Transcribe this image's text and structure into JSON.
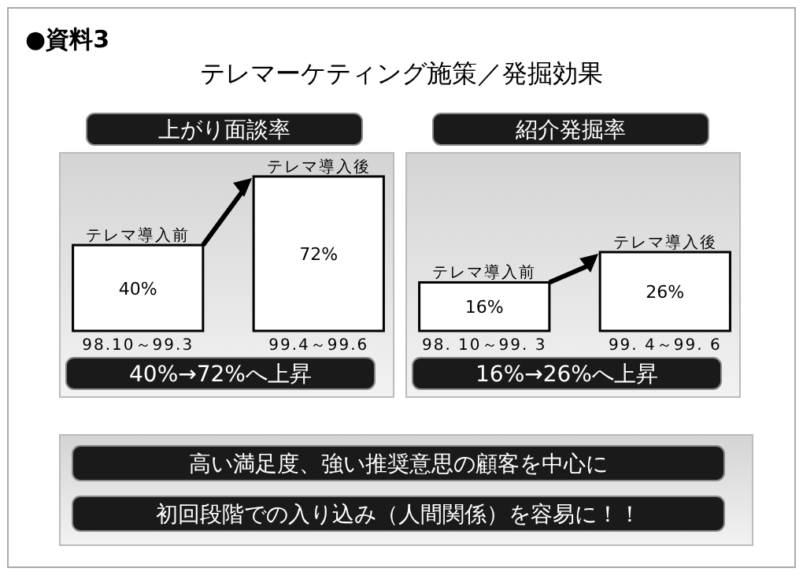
{
  "chart_data": [
    {
      "type": "other",
      "title": "テレマーケティング施策／発掘効果",
      "annotations": [
        "●資料3",
        "高い満足度、強い推奨意思の顧客を中心に",
        "初回段階での入り込み（人間関係）を容易に！！"
      ]
    },
    {
      "type": "bar",
      "title": "上がり面談率",
      "categories": [
        "98.10～99.3",
        "99.4～99.6"
      ],
      "values": [
        40,
        72
      ],
      "color": "#ffffff",
      "value_labels": [
        "40%",
        "72%"
      ],
      "annotations": [
        {
          "text": "テレマ導入前",
          "x": "98.10～99.3",
          "y": 40
        },
        {
          "text": "テレマ導入後",
          "x": "99.4～99.6",
          "y": 72
        },
        "40%→72%へ上昇"
      ]
    },
    {
      "type": "bar",
      "title": "紹介発掘率",
      "categories": [
        "98. 10～99. 3",
        "99. 4～99. 6"
      ],
      "values": [
        16,
        26
      ],
      "color": "#ffffff",
      "value_labels": [
        "16%",
        "26%"
      ],
      "annotations": [
        {
          "text": "テレマ導入前",
          "x": "98. 10～99. 3",
          "y": 16
        },
        {
          "text": "テレマ導入後",
          "x": "99. 4～99. 6",
          "y": 26
        },
        "16%→26%へ上昇"
      ]
    }
  ]
}
